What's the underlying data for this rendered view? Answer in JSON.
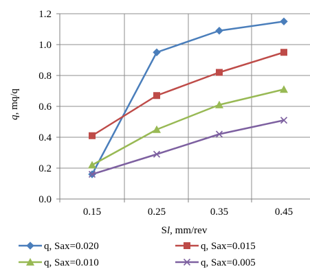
{
  "chart_data": {
    "type": "line",
    "title": "",
    "xlabel": "Sl, mm/rev",
    "ylabel": "q,  mq/q",
    "categories": [
      "0.15",
      "0.25",
      "0.35",
      "0.45"
    ],
    "ylim": [
      0,
      1.2
    ],
    "yticks": [
      "0.0",
      "0.2",
      "0.4",
      "0.6",
      "0.8",
      "1.0",
      "1.2"
    ],
    "grid": true,
    "legend_position": "bottom",
    "series": [
      {
        "name": "q, Sax=0.020",
        "color": "#4a7ebb",
        "marker": "diamond",
        "values": [
          0.16,
          0.95,
          1.09,
          1.15
        ]
      },
      {
        "name": "q, Sax=0.015",
        "color": "#be4b48",
        "marker": "square",
        "values": [
          0.41,
          0.67,
          0.82,
          0.95
        ]
      },
      {
        "name": "q, Sax=0.010",
        "color": "#98b954",
        "marker": "triangle",
        "values": [
          0.22,
          0.45,
          0.61,
          0.71
        ]
      },
      {
        "name": "q, Sax=0.005",
        "color": "#7d60a0",
        "marker": "x",
        "values": [
          0.16,
          0.29,
          0.42,
          0.51
        ]
      }
    ]
  }
}
